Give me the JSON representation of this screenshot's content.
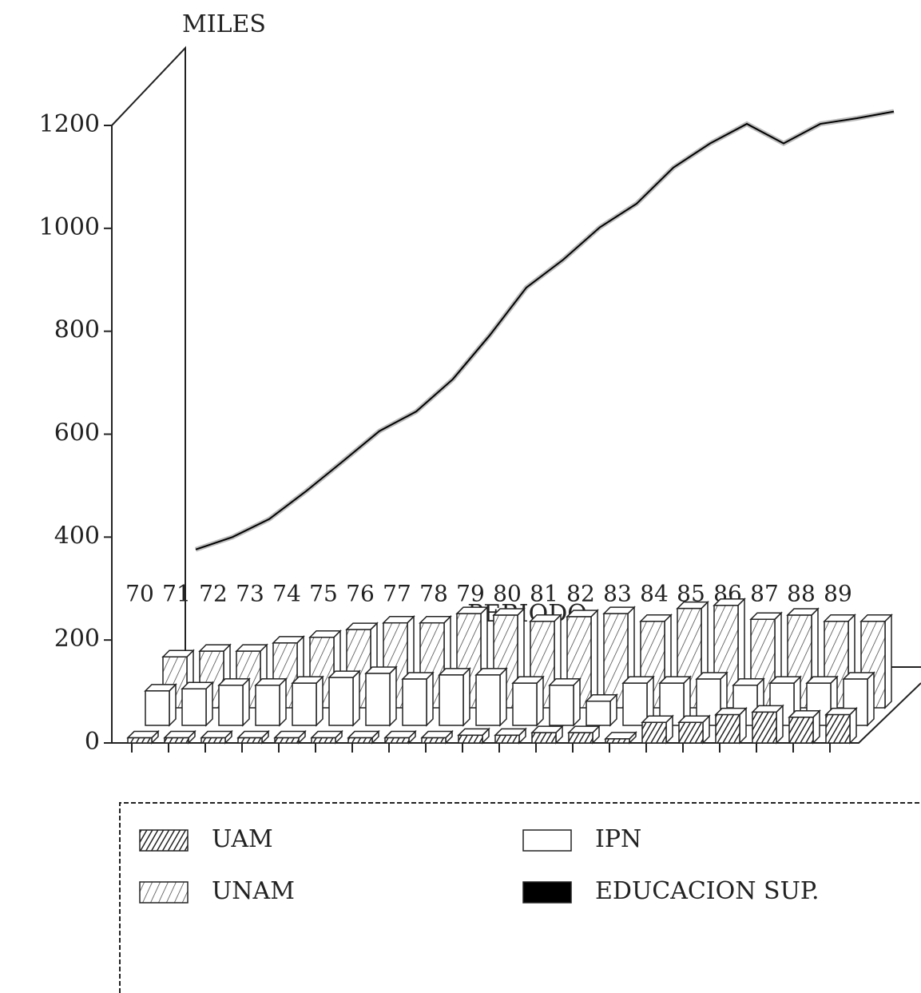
{
  "chart_data": {
    "type": "bar",
    "title": "MILES",
    "x_label": "PERIODO",
    "categories": [
      "70",
      "71",
      "72",
      "73",
      "74",
      "75",
      "76",
      "77",
      "78",
      "79",
      "80",
      "81",
      "82",
      "83",
      "84",
      "85",
      "86",
      "87",
      "88",
      "89"
    ],
    "series": [
      {
        "name": "UAM",
        "color": "#333333",
        "values": [
          10,
          10,
          10,
          10,
          10,
          10,
          10,
          10,
          10,
          15,
          15,
          20,
          20,
          8,
          40,
          40,
          55,
          60,
          50,
          55
        ]
      },
      {
        "name": "IPN",
        "color": "#ffffff",
        "values": [
          67,
          71,
          78,
          78,
          82,
          93,
          101,
          90,
          98,
          98,
          82,
          78,
          47,
          82,
          82,
          90,
          78,
          82,
          82,
          90
        ]
      },
      {
        "name": "UNAM",
        "color": "#555555",
        "values": [
          99,
          110,
          110,
          126,
          137,
          152,
          165,
          165,
          183,
          180,
          168,
          177,
          183,
          168,
          193,
          199,
          172,
          180,
          168,
          168
        ]
      },
      {
        "name": "EDUCACION SUP.",
        "color": "#000000",
        "type": "line",
        "values": [
          376,
          400,
          435,
          489,
          547,
          606,
          644,
          707,
          792,
          885,
          939,
          1002,
          1048,
          1118,
          1165,
          1203,
          1165,
          1203,
          1214,
          1227
        ]
      }
    ],
    "ylim": [
      0,
      1200
    ],
    "yticks": [
      0,
      200,
      400,
      600,
      800,
      1000,
      1200
    ]
  }
}
